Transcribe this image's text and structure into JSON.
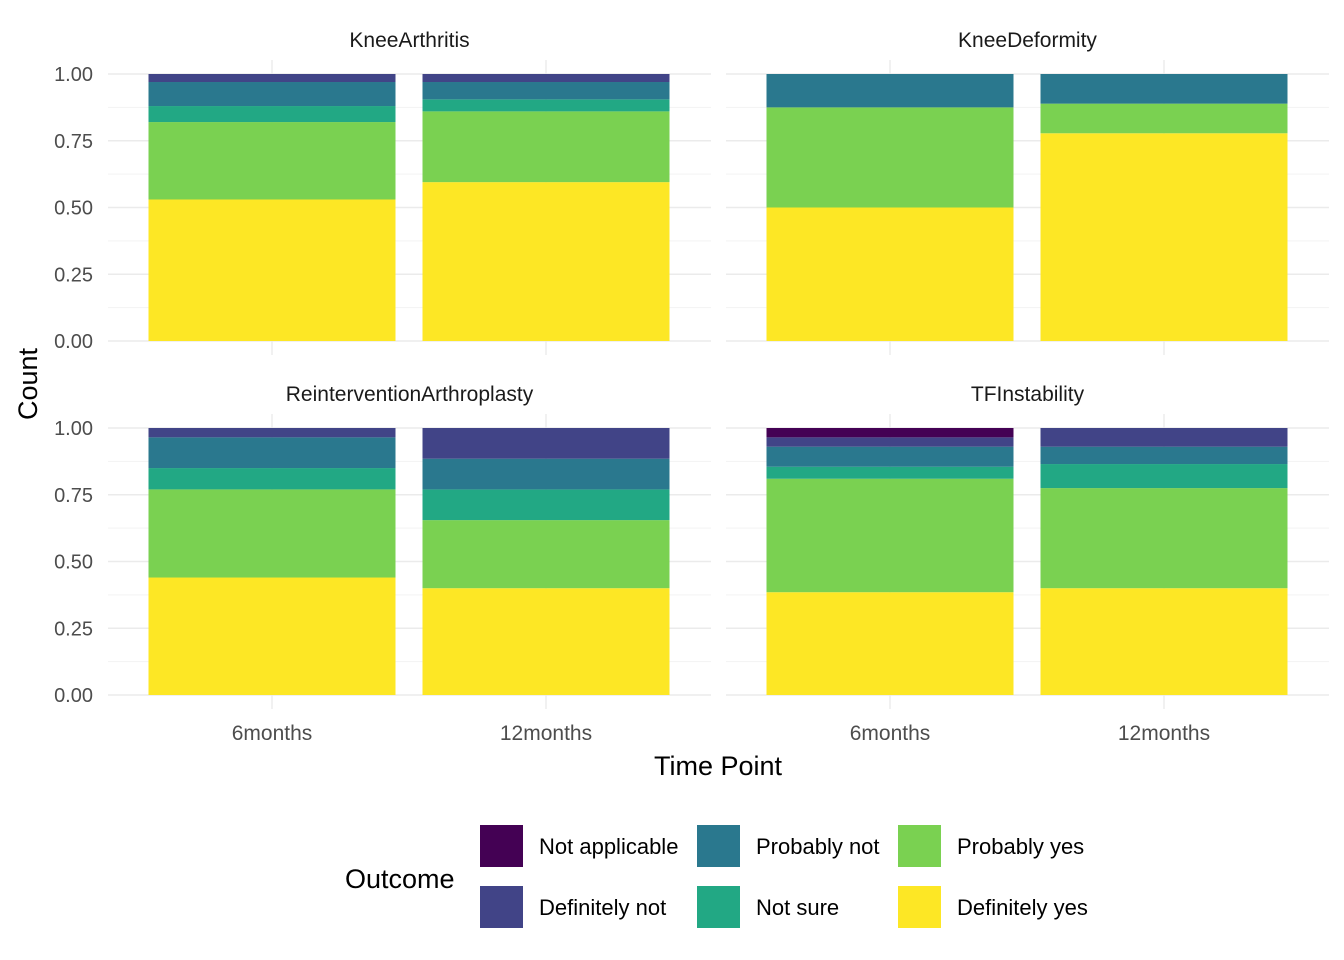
{
  "chart_data": {
    "type": "bar",
    "stacked": true,
    "position": "fill",
    "xlabel": "Time Point",
    "ylabel": "Count",
    "ylim": [
      0,
      1
    ],
    "yticks": [
      "0.00",
      "0.25",
      "0.50",
      "0.75",
      "1.00"
    ],
    "categories": [
      "6months",
      "12months"
    ],
    "grid": true,
    "legend": {
      "title": "Outcome",
      "placement": "bottom",
      "columns": [
        [
          "Not applicable",
          "Definitely not"
        ],
        [
          "Probably not",
          "Not sure"
        ],
        [
          "Probably yes",
          "Definitely yes"
        ]
      ]
    },
    "colors": {
      "Not applicable": "#440154",
      "Definitely not": "#414487",
      "Probably not": "#2A788E",
      "Not sure": "#22A884",
      "Probably yes": "#7AD151",
      "Definitely yes": "#FDE725"
    },
    "stack_order_bottom_to_top": [
      "Definitely yes",
      "Probably yes",
      "Not sure",
      "Probably not",
      "Definitely not",
      "Not applicable"
    ],
    "panels": [
      {
        "title": "KneeArthritis",
        "bars": [
          {
            "category": "6months",
            "values": {
              "Definitely yes": 0.53,
              "Probably yes": 0.29,
              "Not sure": 0.06,
              "Probably not": 0.09,
              "Definitely not": 0.03,
              "Not applicable": 0.0
            }
          },
          {
            "category": "12months",
            "values": {
              "Definitely yes": 0.595,
              "Probably yes": 0.265,
              "Not sure": 0.045,
              "Probably not": 0.065,
              "Definitely not": 0.03,
              "Not applicable": 0.0
            }
          }
        ]
      },
      {
        "title": "KneeDeformity",
        "bars": [
          {
            "category": "6months",
            "values": {
              "Definitely yes": 0.5,
              "Probably yes": 0.375,
              "Not sure": 0.0,
              "Probably not": 0.125,
              "Definitely not": 0.0,
              "Not applicable": 0.0
            }
          },
          {
            "category": "12months",
            "values": {
              "Definitely yes": 0.778,
              "Probably yes": 0.111,
              "Not sure": 0.0,
              "Probably not": 0.111,
              "Definitely not": 0.0,
              "Not applicable": 0.0
            }
          }
        ]
      },
      {
        "title": "ReinterventionArthroplasty",
        "bars": [
          {
            "category": "6months",
            "values": {
              "Definitely yes": 0.44,
              "Probably yes": 0.33,
              "Not sure": 0.08,
              "Probably not": 0.115,
              "Definitely not": 0.035,
              "Not applicable": 0.0
            }
          },
          {
            "category": "12months",
            "values": {
              "Definitely yes": 0.4,
              "Probably yes": 0.255,
              "Not sure": 0.115,
              "Probably not": 0.115,
              "Definitely not": 0.115,
              "Not applicable": 0.0
            }
          }
        ]
      },
      {
        "title": "TFInstability",
        "bars": [
          {
            "category": "6months",
            "values": {
              "Definitely yes": 0.385,
              "Probably yes": 0.425,
              "Not sure": 0.045,
              "Probably not": 0.075,
              "Definitely not": 0.035,
              "Not applicable": 0.035
            }
          },
          {
            "category": "12months",
            "values": {
              "Definitely yes": 0.4,
              "Probably yes": 0.375,
              "Not sure": 0.09,
              "Probably not": 0.065,
              "Definitely not": 0.07,
              "Not applicable": 0.0
            }
          }
        ]
      }
    ]
  }
}
